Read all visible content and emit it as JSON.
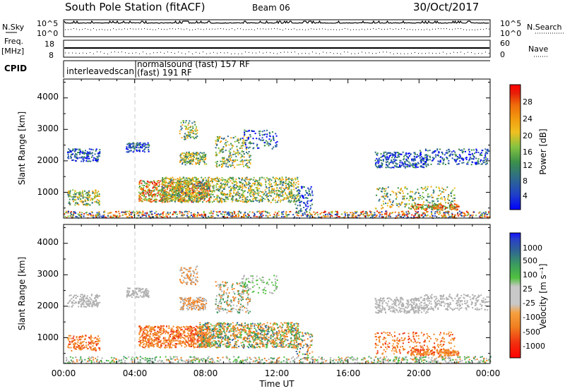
{
  "header": {
    "title": "South Pole Station (fitACF)",
    "beam": "Beam 06",
    "date": "30/Oct/2017"
  },
  "chart_data": [
    {
      "type": "line",
      "panel": "noise",
      "left_label": "N.Sky",
      "left_ticks": [
        "10^5",
        "10^0"
      ],
      "right_label": "N.Search",
      "right_ticks": [
        "10^5",
        "10^0"
      ]
    },
    {
      "type": "line",
      "panel": "frequency",
      "left_label_lines": [
        "Freq.",
        "[MHz]"
      ],
      "left_ticks": [
        "18",
        "8"
      ],
      "ylim": [
        8,
        18
      ],
      "right_label": "Nave",
      "right_ticks": [
        "60",
        "0"
      ]
    },
    {
      "type": "table",
      "panel": "cpid",
      "label": "CPID",
      "entries": [
        {
          "text": "interleavedscan"
        },
        {
          "text": "normalsound (fast)  157 RF"
        },
        {
          "text": "(fast)  191 RF"
        }
      ]
    },
    {
      "type": "heatmap",
      "panel": "power",
      "ylabel": "Slant Range [km]",
      "yticks": [
        "1000",
        "2000",
        "3000",
        "4000"
      ],
      "ylim": [
        180,
        4600
      ],
      "x_hours": [
        0,
        24
      ],
      "colorbar_label": "Power [dB]",
      "colorbar_ticks": [
        "28",
        "24",
        "20",
        "16",
        "12",
        "8",
        "4"
      ],
      "colorbar_range": [
        0,
        30
      ],
      "marker_hour": 4
    },
    {
      "type": "heatmap",
      "panel": "velocity",
      "ylabel": "Slant Range [km]",
      "yticks": [
        "1000",
        "2000",
        "3000",
        "4000"
      ],
      "ylim": [
        180,
        4600
      ],
      "x_hours": [
        0,
        24
      ],
      "colorbar_label": "Velocity [m s⁻¹]",
      "colorbar_ticks": [
        "1000",
        "500",
        "100",
        "25",
        "-25",
        "-100",
        "-500",
        "-1000"
      ],
      "marker_hour": 4,
      "xlabel": "Time UT",
      "xticks": [
        "00:00",
        "04:00",
        "08:00",
        "12:00",
        "16:00",
        "20:00",
        "00:00"
      ]
    }
  ],
  "colors": {
    "power_scale": [
      "#0000ff",
      "#1f40c8",
      "#2e6a8c",
      "#3b8f4a",
      "#84c341",
      "#f0c020",
      "#f39e10",
      "#ef6a0a",
      "#e8200a",
      "#ff0000"
    ],
    "velocity_scale": [
      "#ff0000",
      "#f03010",
      "#f08020",
      "#f5a040",
      "#c8c8c8",
      "#c8c8c8",
      "#50c040",
      "#3a9a60",
      "#2e5f9a",
      "#2a40c8",
      "#1010ff"
    ],
    "ground_scatter": "#b0b0b0"
  }
}
